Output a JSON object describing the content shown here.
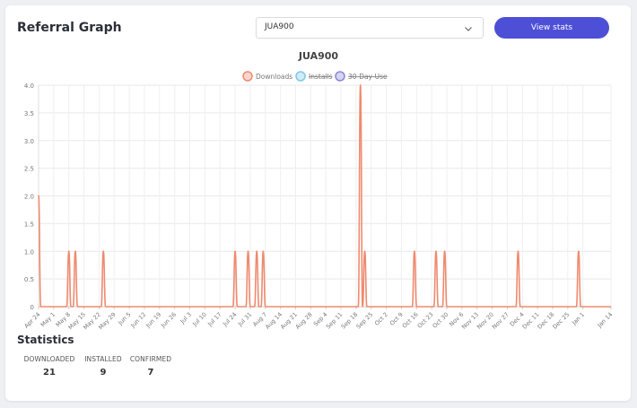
{
  "header": {
    "title": "Referral Graph",
    "select_value": "JUA900",
    "button_label": "View stats"
  },
  "colors": {
    "downloads": "#ef8a6f",
    "installs": "#7ec8e8",
    "thirty_day_use": "#8a86d6",
    "button": "#4e4fd7"
  },
  "chart_data": {
    "type": "line",
    "title": "JUA900",
    "legend": {
      "placement": "top-center",
      "entries": [
        {
          "name": "Downloads",
          "hidden": false
        },
        {
          "name": "Installs",
          "hidden": true
        },
        {
          "name": "30-Day-Use",
          "hidden": true
        }
      ]
    },
    "ylim": [
      0,
      4
    ],
    "y_ticks": [
      "0",
      "0.5",
      "1.0",
      "1.5",
      "2.0",
      "2.5",
      "3.0",
      "3.5",
      "4.0"
    ],
    "grid": true,
    "x_labels": [
      "Apr 24",
      "May 1",
      "May 8",
      "May 15",
      "May 22",
      "May 29",
      "Jun 5",
      "Jun 12",
      "Jun 19",
      "Jun 26",
      "Jul 3",
      "Jul 10",
      "Jul 17",
      "Jul 24",
      "Jul 31",
      "Aug 7",
      "Aug 14",
      "Aug 21",
      "Aug 28",
      "Sep 4",
      "Sep 11",
      "Sep 18",
      "Sep 25",
      "Oct 2",
      "Oct 9",
      "Oct 16",
      "Oct 23",
      "Oct 30",
      "Nov 6",
      "Nov 13",
      "Nov 20",
      "Nov 27",
      "Dec 4",
      "Dec 11",
      "Dec 18",
      "Dec 25",
      "Jan 1",
      "Jan 14"
    ],
    "series": [
      {
        "name": "Downloads",
        "points": [
          {
            "x": "Apr 24",
            "y": 2
          },
          {
            "x": "May 8",
            "y": 1
          },
          {
            "x": "May 11",
            "y": 1
          },
          {
            "x": "May 24",
            "y": 1
          },
          {
            "x": "Jul 24",
            "y": 1
          },
          {
            "x": "Jul 30",
            "y": 1
          },
          {
            "x": "Aug 3",
            "y": 1
          },
          {
            "x": "Aug 6",
            "y": 1
          },
          {
            "x": "Sep 20",
            "y": 4
          },
          {
            "x": "Sep 22",
            "y": 1
          },
          {
            "x": "Oct 15",
            "y": 1
          },
          {
            "x": "Oct 25",
            "y": 1
          },
          {
            "x": "Oct 29",
            "y": 1
          },
          {
            "x": "Dec 2",
            "y": 1
          },
          {
            "x": "Dec 30",
            "y": 1
          }
        ]
      }
    ]
  },
  "statistics": {
    "title": "Statistics",
    "items": [
      {
        "label": "DOWNLOADED",
        "value": "21"
      },
      {
        "label": "INSTALLED",
        "value": "9"
      },
      {
        "label": "CONFIRMED",
        "value": "7"
      }
    ]
  }
}
